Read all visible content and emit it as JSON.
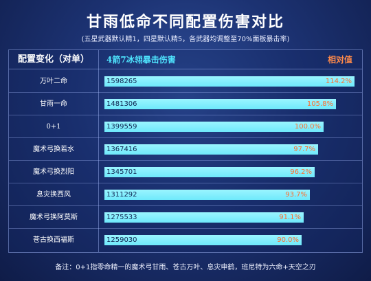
{
  "title": "甘雨低命不同配置伤害对比",
  "subtitle": "(五星武器默认精1，四星默认精5，各武器均调整至70%面板暴击率)",
  "note": "备注：0+1指零命精一的魔术弓甘雨、苍古万叶、息灾申鹤，班尼特为六命+天空之刃",
  "colors": {
    "bar": "#6fe9fb",
    "percent_text": "#ff6d2e",
    "header_damage": "#4fe6ff",
    "header_relative": "#ff8a4a"
  },
  "chart_data": {
    "type": "bar",
    "orientation": "horizontal",
    "column_headers": {
      "config": "配置变化（对单）",
      "damage": "4箭7冰翎暴击伤害",
      "relative": "相对值"
    },
    "categories": [
      "万叶二命",
      "甘雨一命",
      "0+1",
      "魔术弓换若水",
      "魔术弓换烈阳",
      "息灾换西风",
      "魔术弓换阿莫斯",
      "苍古换西福斯"
    ],
    "values": [
      1598265,
      1481306,
      1399559,
      1367416,
      1345701,
      1311292,
      1275533,
      1259030
    ],
    "relative": [
      "114.2%",
      "105.8%",
      "100.0%",
      "97.7%",
      "96.2%",
      "93.7%",
      "91.1%",
      "90.0%"
    ],
    "xlim": [
      0,
      1598265
    ]
  }
}
